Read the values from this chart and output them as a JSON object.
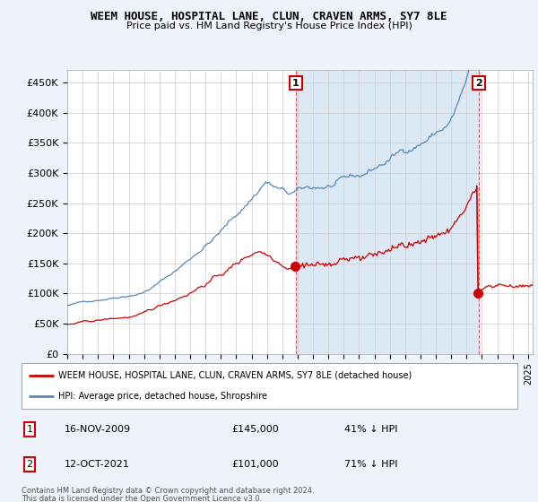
{
  "title": "WEEM HOUSE, HOSPITAL LANE, CLUN, CRAVEN ARMS, SY7 8LE",
  "subtitle": "Price paid vs. HM Land Registry's House Price Index (HPI)",
  "ylabel_ticks": [
    "£0",
    "£50K",
    "£100K",
    "£150K",
    "£200K",
    "£250K",
    "£300K",
    "£350K",
    "£400K",
    "£450K"
  ],
  "ytick_values": [
    0,
    50000,
    100000,
    150000,
    200000,
    250000,
    300000,
    350000,
    400000,
    450000
  ],
  "ylim": [
    0,
    470000
  ],
  "xlim_start": 1995.0,
  "xlim_end": 2025.3,
  "hpi_color": "#5588bb",
  "price_color": "#cc0000",
  "marker1_date": 2009.88,
  "marker1_price": 145000,
  "marker2_date": 2021.79,
  "marker2_price": 101000,
  "legend_line1": "WEEM HOUSE, HOSPITAL LANE, CLUN, CRAVEN ARMS, SY7 8LE (detached house)",
  "legend_line2": "HPI: Average price, detached house, Shropshire",
  "footer1": "Contains HM Land Registry data © Crown copyright and database right 2024.",
  "footer2": "This data is licensed under the Open Government Licence v3.0.",
  "background_color": "#eef2fb",
  "plot_background": "#ffffff",
  "shade_color": "#dde8f5"
}
